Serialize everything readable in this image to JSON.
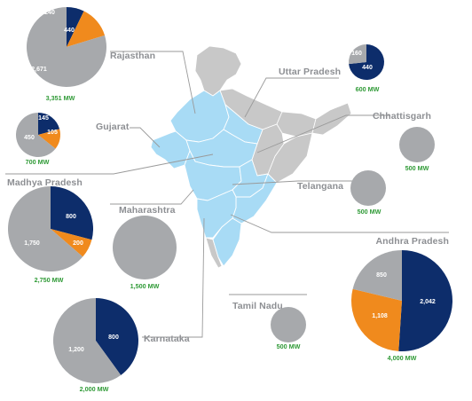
{
  "colors": {
    "navy": "#0d2d6b",
    "orange": "#f08a1d",
    "gray": "#a7a9ac",
    "map_fill": "#a8dbf5",
    "map_gray": "#c8c8c8",
    "leader": "#9a9a9a",
    "total_text": "#2f9a36",
    "label_text": "#8d8f93"
  },
  "states": [
    {
      "name": "Rajasthan",
      "total": "3,351 MW",
      "segments": [
        {
          "value": 240,
          "label": "240",
          "color": "navy"
        },
        {
          "value": 440,
          "label": "440",
          "color": "orange"
        },
        {
          "value": 2671,
          "label": "2,671",
          "color": "gray"
        }
      ]
    },
    {
      "name": "Uttar Pradesh",
      "total": "600 MW",
      "segments": [
        {
          "value": 440,
          "label": "440",
          "color": "navy"
        },
        {
          "value": 160,
          "label": "160",
          "color": "gray"
        }
      ]
    },
    {
      "name": "Gujarat",
      "total": "700 MW",
      "segments": [
        {
          "value": 145,
          "label": "145",
          "color": "navy"
        },
        {
          "value": 105,
          "label": "105",
          "color": "orange"
        },
        {
          "value": 450,
          "label": "450",
          "color": "gray"
        }
      ]
    },
    {
      "name": "Chhattisgarh",
      "total": "500 MW",
      "segments": [
        {
          "value": 500,
          "label": "",
          "color": "gray"
        }
      ]
    },
    {
      "name": "Madhya Pradesh",
      "total": "2,750 MW",
      "segments": [
        {
          "value": 800,
          "label": "800",
          "color": "navy"
        },
        {
          "value": 200,
          "label": "200",
          "color": "orange"
        },
        {
          "value": 1750,
          "label": "1,750",
          "color": "gray"
        }
      ]
    },
    {
      "name": "Telangana",
      "total": "500 MW",
      "segments": [
        {
          "value": 500,
          "label": "",
          "color": "gray"
        }
      ]
    },
    {
      "name": "Maharashtra",
      "total": "1,500 MW",
      "segments": [
        {
          "value": 1500,
          "label": "",
          "color": "gray"
        }
      ]
    },
    {
      "name": "Andhra Pradesh",
      "total": "4,000 MW",
      "segments": [
        {
          "value": 2042,
          "label": "2,042",
          "color": "navy"
        },
        {
          "value": 1108,
          "label": "1,108",
          "color": "orange"
        },
        {
          "value": 850,
          "label": "850",
          "color": "gray"
        }
      ]
    },
    {
      "name": "Tamil Nadu",
      "total": "500 MW",
      "segments": [
        {
          "value": 500,
          "label": "",
          "color": "gray"
        }
      ]
    },
    {
      "name": "Karnataka",
      "total": "2,000 MW",
      "segments": [
        {
          "value": 800,
          "label": "800",
          "color": "navy"
        },
        {
          "value": 1200,
          "label": "1,200",
          "color": "gray"
        }
      ]
    }
  ]
}
